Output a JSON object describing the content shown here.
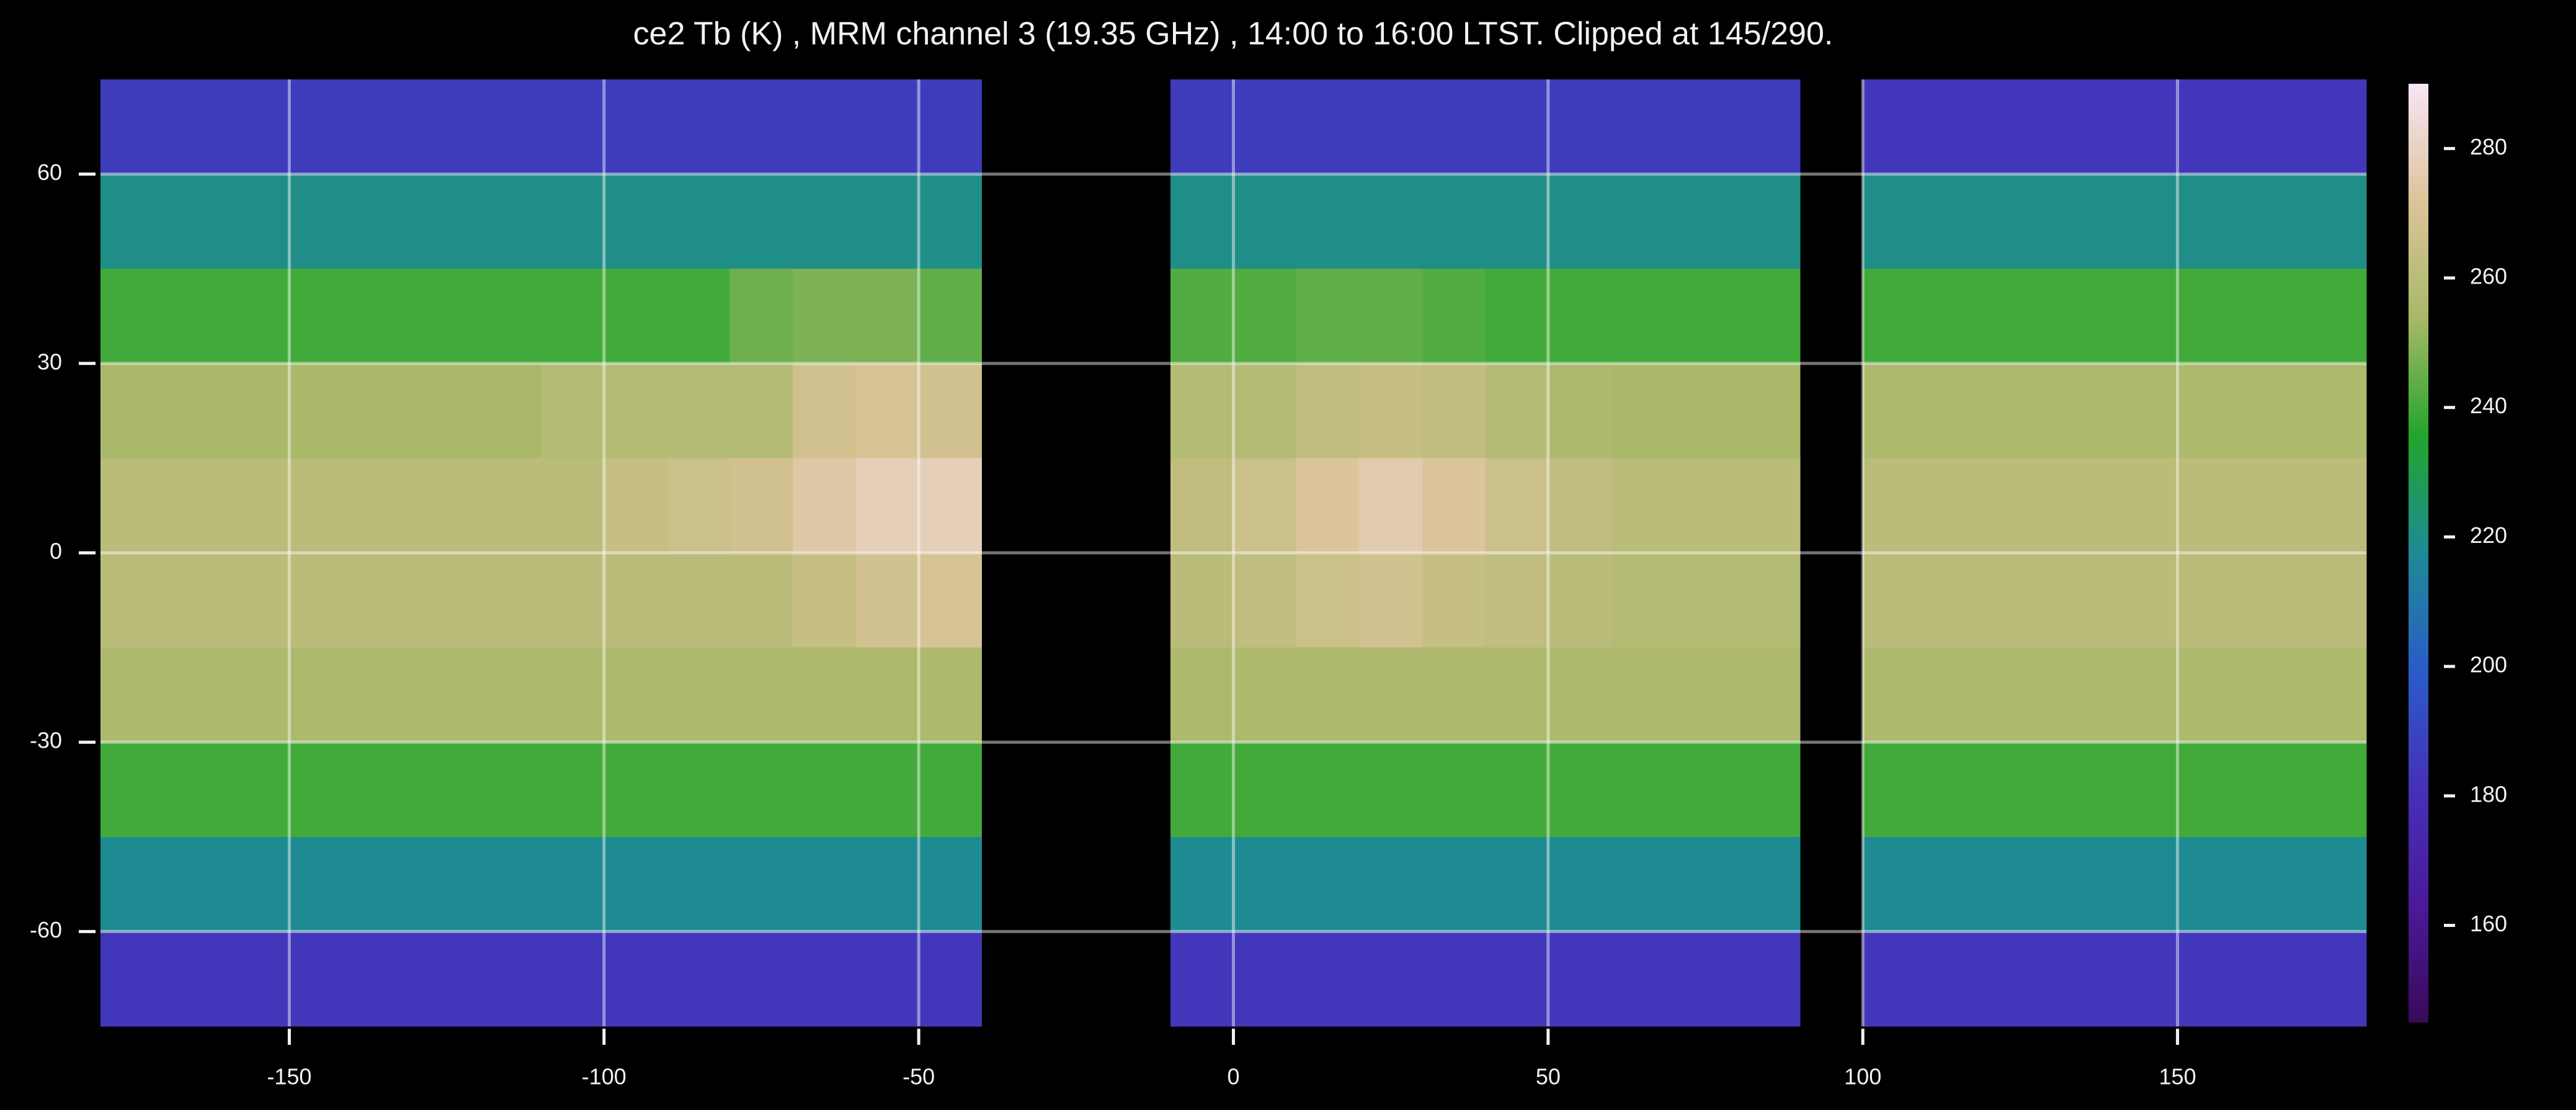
{
  "chart_data": {
    "type": "heatmap",
    "title": "ce2 Tb (K) , MRM channel 3 (19.35 GHz) , 14:00 to 16:00 LTST. Clipped at 145/290.",
    "x_bins": [
      -180,
      -170,
      -160,
      -150,
      -140,
      -130,
      -120,
      -110,
      -100,
      -90,
      -80,
      -70,
      -60,
      -50,
      -40,
      -30,
      -20,
      -10,
      0,
      10,
      20,
      30,
      40,
      50,
      60,
      70,
      80,
      90,
      100,
      110,
      120,
      130,
      140,
      150,
      160,
      170,
      180
    ],
    "y_bins": [
      75,
      60,
      45,
      30,
      15,
      0,
      -15,
      -30,
      -45,
      -60,
      -75
    ],
    "values": [
      [
        186,
        186,
        186,
        186,
        186,
        186,
        186,
        186,
        186,
        186,
        186,
        186,
        186,
        186,
        null,
        null,
        null,
        186,
        186,
        186,
        186,
        186,
        186,
        186,
        186,
        186,
        186,
        null,
        184,
        184,
        184,
        184,
        184,
        184,
        184,
        184
      ],
      [
        220,
        220,
        220,
        220,
        220,
        220,
        220,
        220,
        220,
        220,
        220,
        220,
        220,
        220,
        null,
        null,
        null,
        220,
        220,
        220,
        220,
        220,
        220,
        220,
        220,
        220,
        220,
        null,
        220,
        220,
        220,
        220,
        220,
        220,
        220,
        220
      ],
      [
        240,
        240,
        240,
        240,
        240,
        240,
        240,
        240,
        240,
        240,
        246,
        248,
        248,
        244,
        null,
        null,
        null,
        242,
        242,
        244,
        244,
        242,
        240,
        240,
        240,
        240,
        240,
        null,
        240,
        240,
        240,
        240,
        240,
        240,
        240,
        240
      ],
      [
        254,
        254,
        254,
        254,
        254,
        254,
        254,
        258,
        258,
        258,
        258,
        268,
        270,
        268,
        null,
        null,
        null,
        258,
        258,
        262,
        264,
        262,
        258,
        256,
        254,
        254,
        254,
        null,
        256,
        256,
        256,
        256,
        256,
        256,
        256,
        256
      ],
      [
        260,
        260,
        260,
        260,
        260,
        260,
        260,
        260,
        264,
        266,
        268,
        274,
        278,
        278,
        null,
        null,
        null,
        262,
        266,
        272,
        276,
        272,
        266,
        262,
        260,
        260,
        260,
        null,
        260,
        260,
        260,
        260,
        260,
        260,
        260,
        260
      ],
      [
        260,
        260,
        260,
        260,
        260,
        260,
        260,
        260,
        260,
        260,
        260,
        264,
        268,
        270,
        null,
        null,
        null,
        260,
        262,
        266,
        268,
        264,
        262,
        260,
        258,
        258,
        258,
        null,
        260,
        260,
        260,
        260,
        260,
        260,
        260,
        260
      ],
      [
        256,
        256,
        256,
        256,
        256,
        256,
        256,
        256,
        256,
        256,
        256,
        256,
        256,
        256,
        null,
        null,
        null,
        256,
        256,
        256,
        256,
        256,
        256,
        256,
        256,
        256,
        256,
        null,
        256,
        256,
        256,
        256,
        256,
        256,
        256,
        256
      ],
      [
        240,
        240,
        240,
        240,
        240,
        240,
        240,
        240,
        240,
        240,
        240,
        240,
        240,
        240,
        null,
        null,
        null,
        240,
        240,
        240,
        240,
        240,
        240,
        240,
        240,
        240,
        240,
        null,
        240,
        240,
        240,
        240,
        240,
        240,
        240,
        240
      ],
      [
        218,
        218,
        218,
        218,
        218,
        218,
        218,
        218,
        218,
        218,
        218,
        218,
        218,
        218,
        null,
        null,
        null,
        218,
        218,
        218,
        218,
        218,
        218,
        218,
        218,
        218,
        218,
        null,
        218,
        218,
        218,
        218,
        218,
        218,
        218,
        218
      ],
      [
        184,
        184,
        184,
        184,
        184,
        184,
        184,
        184,
        184,
        184,
        184,
        184,
        184,
        184,
        null,
        null,
        null,
        184,
        184,
        184,
        184,
        184,
        184,
        184,
        184,
        184,
        184,
        null,
        184,
        184,
        184,
        184,
        184,
        184,
        184,
        184
      ]
    ],
    "xlim": [
      -180,
      180
    ],
    "ylim": [
      -75,
      75
    ],
    "xticks": [
      -150,
      -100,
      -50,
      0,
      50,
      100,
      150
    ],
    "yticks": [
      -60,
      -30,
      0,
      30,
      60
    ],
    "clim": [
      145,
      290
    ],
    "cticks": [
      160,
      180,
      200,
      220,
      240,
      260,
      280
    ],
    "colors": [
      "#3a0a5a",
      "#4a1a9a",
      "#4630b8",
      "#2a5cc8",
      "#1e8a96",
      "#22a52c",
      "#a8b868",
      "#dcc49a",
      "#f8e4f6"
    ],
    "grid": true
  }
}
